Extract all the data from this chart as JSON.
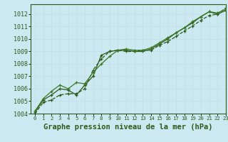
{
  "title": "Graphe pression niveau de la mer (hPa)",
  "xlim": [
    -0.5,
    23
  ],
  "ylim": [
    1004,
    1012.8
  ],
  "yticks": [
    1004,
    1005,
    1006,
    1007,
    1008,
    1009,
    1010,
    1011,
    1012
  ],
  "xticks": [
    0,
    1,
    2,
    3,
    4,
    5,
    6,
    7,
    8,
    9,
    10,
    11,
    12,
    13,
    14,
    15,
    16,
    17,
    18,
    19,
    20,
    21,
    22,
    23
  ],
  "bg_color": "#cce8f0",
  "grid_color": "#b0d8e8",
  "line_color_dark": "#2d5a1b",
  "line_color_med": "#3a7a25",
  "series1": [
    1004.0,
    1004.9,
    1005.1,
    1005.5,
    1005.6,
    1005.6,
    1006.0,
    1007.5,
    1008.4,
    1009.0,
    1009.1,
    1009.0,
    1009.0,
    1009.1,
    1009.1,
    1009.5,
    1009.8,
    1010.2,
    1010.65,
    1011.05,
    1011.5,
    1011.9,
    1012.0,
    1012.5
  ],
  "series2": [
    1004.1,
    1005.1,
    1005.5,
    1006.0,
    1005.9,
    1005.5,
    1006.3,
    1007.0,
    1008.7,
    1009.0,
    1009.1,
    1009.1,
    1009.0,
    1009.0,
    1009.2,
    1009.6,
    1010.0,
    1010.5,
    1010.9,
    1011.3,
    1011.8,
    1012.2,
    1012.0,
    1012.3
  ],
  "series3": [
    1004.2,
    1005.2,
    1005.8,
    1006.3,
    1006.0,
    1006.5,
    1006.4,
    1007.3,
    1008.0,
    1008.6,
    1009.1,
    1009.2,
    1009.1,
    1009.1,
    1009.3,
    1009.7,
    1010.1,
    1010.5,
    1010.9,
    1011.4,
    1011.8,
    1012.2,
    1012.1,
    1012.4
  ],
  "ylabel_fontsize": 6,
  "xlabel_fontsize": 7,
  "title_fontsize": 7.5
}
